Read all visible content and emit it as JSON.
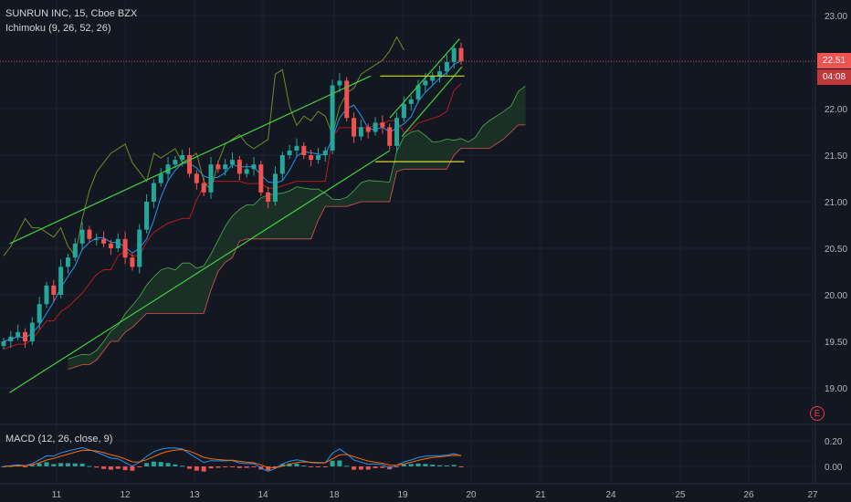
{
  "header": {
    "symbol_line": "SUNRUN INC, 15, Cboe BZX",
    "indicator_line": "Ichimoku (9, 26, 52, 26)",
    "macd_line": "MACD (12, 26, close, 9)"
  },
  "price_labels": {
    "last_price": "22.51",
    "countdown": "04:08"
  },
  "earnings_badge": "E",
  "colors": {
    "background": "#131722",
    "up": "#26a69a",
    "down": "#ef5350",
    "trend_lines": "#3fd33f",
    "horizontal_lines": "#d4d92b",
    "tenkan": "#2196f3",
    "kijun": "#b71c1c",
    "chikou": "#6b8e23",
    "cloud": "#1e3a28",
    "macd": "#2196f3",
    "signal": "#ff6d00"
  },
  "chart_data": {
    "type": "candlestick",
    "title": "SUNRUN INC, 15, Cboe BZX",
    "price_axis": {
      "ticks": [
        "23.00",
        "22.50",
        "22.00",
        "21.50",
        "21.00",
        "20.50",
        "20.00",
        "19.50",
        "19.00"
      ],
      "ylim": [
        18.85,
        23.1
      ]
    },
    "time_axis": {
      "ticks": [
        "11",
        "12",
        "13",
        "14",
        "18",
        "19",
        "20",
        "21",
        "24",
        "25",
        "26",
        "27"
      ]
    },
    "price_series_close": [
      19.5,
      19.55,
      19.6,
      19.5,
      19.7,
      19.9,
      20.1,
      20.0,
      20.3,
      20.4,
      20.55,
      20.7,
      20.6,
      20.6,
      20.55,
      20.5,
      20.6,
      20.4,
      20.3,
      20.7,
      21.0,
      21.2,
      21.3,
      21.4,
      21.45,
      21.5,
      21.3,
      21.2,
      21.1,
      21.4,
      21.35,
      21.4,
      21.45,
      21.3,
      21.35,
      21.4,
      21.1,
      21.0,
      21.3,
      21.5,
      21.55,
      21.6,
      21.5,
      21.45,
      21.5,
      21.55,
      22.25,
      22.3,
      21.9,
      21.7,
      21.8,
      21.75,
      21.85,
      21.8,
      21.6,
      21.9,
      22.05,
      22.1,
      22.25,
      22.3,
      22.35,
      22.4,
      22.5,
      22.65,
      22.51
    ],
    "trend_lines": [
      {
        "name": "upper channel",
        "from": [
          10.4,
          20.55
        ],
        "to": [
          17.9,
          22.35
        ]
      },
      {
        "name": "lower channel",
        "from": [
          10.4,
          18.95
        ],
        "to": [
          18.3,
          21.55
        ]
      },
      {
        "name": "rising upper",
        "from": [
          18.3,
          21.9
        ],
        "to": [
          19.75,
          22.75
        ]
      },
      {
        "name": "rising lower",
        "from": [
          18.55,
          21.7
        ],
        "to": [
          19.8,
          22.45
        ]
      }
    ],
    "horizontal_levels": [
      22.35,
      21.43
    ],
    "last_price": 22.51,
    "macd": {
      "ticks": [
        "0.20",
        "0.00"
      ],
      "ylim": [
        -0.12,
        0.3
      ]
    }
  }
}
